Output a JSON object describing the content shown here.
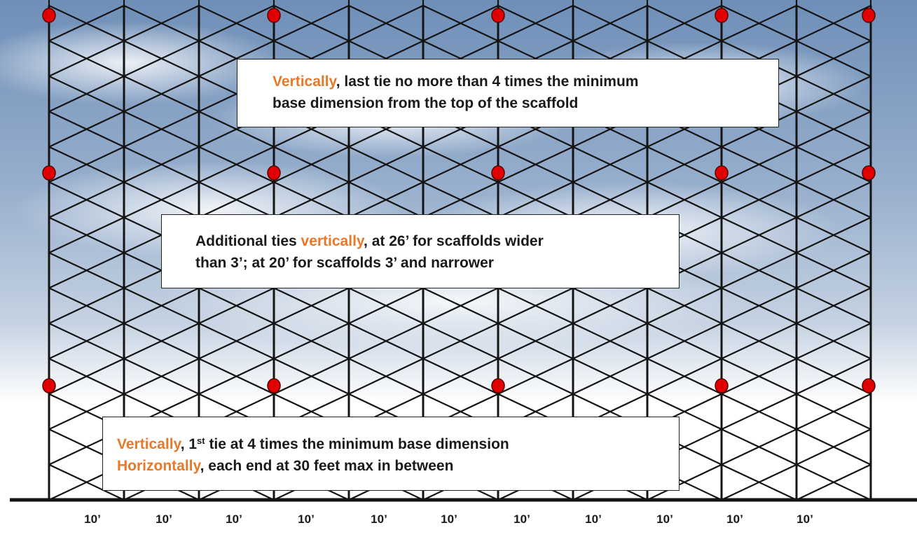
{
  "callouts": {
    "top": {
      "highlight": "Vertically",
      "text_line1": ", last tie no more than 4 times the minimum",
      "text_line2": "base dimension from the top of the scaffold"
    },
    "middle": {
      "text_before": "Additional ties ",
      "highlight": "vertically",
      "text_line1_after": ", at 26’ for scaffolds wider",
      "text_line2": "than 3’; at 20’ for scaffolds 3’ and narrower"
    },
    "bottom": {
      "highlight_vertical": "Vertically",
      "line1_a": ", 1",
      "line1_sup": "st",
      "line1_b": " tie at 4 times the minimum base dimension",
      "highlight_horizontal": "Horizontally",
      "line2_rest": ", each end at 30 feet max in between"
    }
  },
  "bay_labels": [
    "10’",
    "10’",
    "10’",
    "10’",
    "10’",
    "10’",
    "10’",
    "10’",
    "10’",
    "10’",
    "10’"
  ],
  "colors": {
    "highlight": "#e8792a",
    "tie_point": "#e00000",
    "frame": "#141414",
    "sky_top": "#6f8fb8",
    "sky_bottom": "#cdd9e8"
  }
}
